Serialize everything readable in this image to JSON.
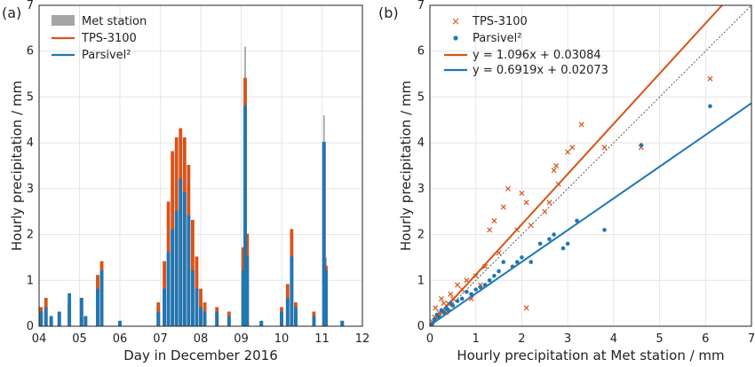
{
  "chart_data": [
    {
      "type": "bar",
      "panel_label": "(a)",
      "xlabel": "Day in December 2016",
      "ylabel": "Hourly precipitation / mm",
      "x_ticks": [
        "04",
        "05",
        "06",
        "07",
        "08",
        "09",
        "10",
        "11",
        "12"
      ],
      "y_ticks": [
        "0",
        "1",
        "2",
        "3",
        "4",
        "5",
        "6",
        "7"
      ],
      "xlim": [
        4,
        12
      ],
      "ylim": [
        0,
        7
      ],
      "grid": true,
      "legend_position": "top-left",
      "series": [
        {
          "name": "Met station",
          "color": "#a6a6a6",
          "style": "filled-bars",
          "points": [
            [
              4.05,
              0.3
            ],
            [
              4.17,
              0.5
            ],
            [
              4.3,
              0.2
            ],
            [
              4.5,
              0.3
            ],
            [
              4.75,
              0.4
            ],
            [
              5.05,
              0.5
            ],
            [
              5.15,
              0.2
            ],
            [
              5.45,
              0.8
            ],
            [
              5.55,
              1.2
            ],
            [
              6.0,
              0.1
            ],
            [
              6.95,
              0.3
            ],
            [
              7.1,
              0.9
            ],
            [
              7.2,
              1.6
            ],
            [
              7.3,
              1.9
            ],
            [
              7.4,
              2.2
            ],
            [
              7.5,
              2.5
            ],
            [
              7.6,
              3.3
            ],
            [
              7.7,
              2.6
            ],
            [
              7.8,
              1.4
            ],
            [
              7.9,
              1.0
            ],
            [
              8.0,
              0.5
            ],
            [
              8.1,
              0.3
            ],
            [
              8.4,
              0.3
            ],
            [
              8.7,
              0.2
            ],
            [
              9.05,
              1.5
            ],
            [
              9.1,
              6.1
            ],
            [
              9.15,
              1.8
            ],
            [
              9.5,
              0.1
            ],
            [
              10.0,
              0.3
            ],
            [
              10.15,
              0.6
            ],
            [
              10.25,
              1.7
            ],
            [
              10.35,
              0.4
            ],
            [
              10.8,
              0.2
            ],
            [
              11.05,
              4.6
            ],
            [
              11.1,
              1.5
            ],
            [
              11.5,
              0.1
            ]
          ]
        },
        {
          "name": "TPS-3100",
          "color": "#d95319",
          "style": "step-outline",
          "points": [
            [
              4.05,
              0.4
            ],
            [
              4.17,
              0.6
            ],
            [
              4.3,
              0.2
            ],
            [
              4.5,
              0.3
            ],
            [
              4.75,
              0.5
            ],
            [
              5.05,
              0.6
            ],
            [
              5.15,
              0.2
            ],
            [
              5.45,
              1.1
            ],
            [
              5.55,
              1.4
            ],
            [
              6.0,
              0.1
            ],
            [
              6.95,
              0.5
            ],
            [
              7.1,
              1.4
            ],
            [
              7.2,
              2.7
            ],
            [
              7.3,
              3.8
            ],
            [
              7.4,
              4.1
            ],
            [
              7.5,
              4.3
            ],
            [
              7.6,
              4.1
            ],
            [
              7.7,
              3.5
            ],
            [
              7.8,
              2.3
            ],
            [
              7.9,
              1.5
            ],
            [
              8.0,
              0.8
            ],
            [
              8.1,
              0.5
            ],
            [
              8.4,
              0.4
            ],
            [
              8.7,
              0.3
            ],
            [
              9.05,
              1.7
            ],
            [
              9.1,
              5.4
            ],
            [
              9.15,
              2.0
            ],
            [
              9.5,
              0.1
            ],
            [
              10.0,
              0.4
            ],
            [
              10.15,
              0.9
            ],
            [
              10.25,
              2.1
            ],
            [
              10.35,
              0.5
            ],
            [
              10.8,
              0.3
            ],
            [
              11.05,
              4.0
            ],
            [
              11.1,
              1.3
            ],
            [
              11.5,
              0.1
            ]
          ]
        },
        {
          "name": "Parsivel²",
          "color": "#1f77b4",
          "style": "step-outline",
          "points": [
            [
              4.05,
              0.3
            ],
            [
              4.17,
              0.4
            ],
            [
              4.3,
              0.2
            ],
            [
              4.5,
              0.3
            ],
            [
              4.75,
              0.7
            ],
            [
              5.05,
              0.6
            ],
            [
              5.15,
              0.2
            ],
            [
              5.45,
              0.8
            ],
            [
              5.55,
              1.2
            ],
            [
              6.0,
              0.1
            ],
            [
              6.95,
              0.3
            ],
            [
              7.1,
              0.8
            ],
            [
              7.2,
              1.6
            ],
            [
              7.3,
              2.1
            ],
            [
              7.4,
              2.5
            ],
            [
              7.5,
              3.2
            ],
            [
              7.6,
              2.9
            ],
            [
              7.7,
              2.4
            ],
            [
              7.8,
              1.2
            ],
            [
              7.9,
              0.8
            ],
            [
              8.0,
              0.4
            ],
            [
              8.1,
              0.3
            ],
            [
              8.4,
              0.3
            ],
            [
              8.7,
              0.2
            ],
            [
              9.05,
              1.2
            ],
            [
              9.1,
              4.8
            ],
            [
              9.15,
              1.5
            ],
            [
              9.5,
              0.1
            ],
            [
              10.0,
              0.3
            ],
            [
              10.15,
              0.6
            ],
            [
              10.25,
              1.5
            ],
            [
              10.35,
              0.4
            ],
            [
              10.8,
              0.2
            ],
            [
              11.05,
              4.0
            ],
            [
              11.1,
              1.2
            ],
            [
              11.5,
              0.1
            ]
          ]
        }
      ]
    },
    {
      "type": "scatter",
      "panel_label": "(b)",
      "xlabel": "Hourly precipitation at Met station / mm",
      "ylabel": "Hourly precipitation / mm",
      "x_ticks": [
        "0",
        "1",
        "2",
        "3",
        "4",
        "5",
        "6",
        "7"
      ],
      "y_ticks": [
        "0",
        "1",
        "2",
        "3",
        "4",
        "5",
        "6",
        "7"
      ],
      "xlim": [
        0,
        7
      ],
      "ylim": [
        0,
        7
      ],
      "grid": true,
      "legend_position": "top-left",
      "one_to_one_line": true,
      "series": [
        {
          "name": "TPS-3100",
          "color": "#d95319",
          "marker": "x",
          "points": [
            [
              0.05,
              0.1
            ],
            [
              0.1,
              0.2
            ],
            [
              0.12,
              0.4
            ],
            [
              0.2,
              0.3
            ],
            [
              0.25,
              0.6
            ],
            [
              0.3,
              0.5
            ],
            [
              0.35,
              0.3
            ],
            [
              0.4,
              0.5
            ],
            [
              0.45,
              0.7
            ],
            [
              0.5,
              0.6
            ],
            [
              0.6,
              0.9
            ],
            [
              0.7,
              0.8
            ],
            [
              0.8,
              1.0
            ],
            [
              0.9,
              0.6
            ],
            [
              1.0,
              1.1
            ],
            [
              1.1,
              0.9
            ],
            [
              1.2,
              1.3
            ],
            [
              1.3,
              2.1
            ],
            [
              1.4,
              2.3
            ],
            [
              1.5,
              1.6
            ],
            [
              1.6,
              2.6
            ],
            [
              1.7,
              3.0
            ],
            [
              1.9,
              2.1
            ],
            [
              2.0,
              2.9
            ],
            [
              2.1,
              2.7
            ],
            [
              2.2,
              2.2
            ],
            [
              2.1,
              0.4
            ],
            [
              2.5,
              2.5
            ],
            [
              2.6,
              2.7
            ],
            [
              2.7,
              3.4
            ],
            [
              2.75,
              3.5
            ],
            [
              2.8,
              3.1
            ],
            [
              3.0,
              3.8
            ],
            [
              3.1,
              3.9
            ],
            [
              3.3,
              4.4
            ],
            [
              3.8,
              3.9
            ],
            [
              4.6,
              3.9
            ],
            [
              6.1,
              5.4
            ]
          ]
        },
        {
          "name": "Parsivel²",
          "color": "#1f77b4",
          "marker": "dot",
          "points": [
            [
              0.05,
              0.05
            ],
            [
              0.1,
              0.15
            ],
            [
              0.15,
              0.25
            ],
            [
              0.2,
              0.2
            ],
            [
              0.25,
              0.35
            ],
            [
              0.3,
              0.3
            ],
            [
              0.35,
              0.4
            ],
            [
              0.4,
              0.35
            ],
            [
              0.45,
              0.5
            ],
            [
              0.5,
              0.45
            ],
            [
              0.6,
              0.55
            ],
            [
              0.7,
              0.6
            ],
            [
              0.8,
              0.75
            ],
            [
              0.9,
              0.7
            ],
            [
              1.0,
              0.8
            ],
            [
              1.1,
              0.85
            ],
            [
              1.2,
              0.9
            ],
            [
              1.3,
              1.0
            ],
            [
              1.4,
              1.1
            ],
            [
              1.5,
              1.2
            ],
            [
              1.6,
              1.4
            ],
            [
              1.8,
              1.3
            ],
            [
              1.9,
              1.4
            ],
            [
              2.0,
              1.5
            ],
            [
              2.2,
              1.4
            ],
            [
              2.4,
              1.8
            ],
            [
              2.6,
              1.9
            ],
            [
              2.7,
              2.0
            ],
            [
              2.9,
              1.7
            ],
            [
              3.0,
              1.8
            ],
            [
              3.2,
              2.3
            ],
            [
              3.8,
              2.1
            ],
            [
              4.6,
              3.95
            ],
            [
              6.1,
              4.8
            ]
          ]
        }
      ],
      "fit_lines": [
        {
          "label": "y = 1.096x + 0.03084",
          "color": "#d95319",
          "slope": 1.096,
          "intercept": 0.03084
        },
        {
          "label": "y = 0.6919x + 0.02073",
          "color": "#1f77b4",
          "slope": 0.6919,
          "intercept": 0.02073
        }
      ]
    }
  ]
}
